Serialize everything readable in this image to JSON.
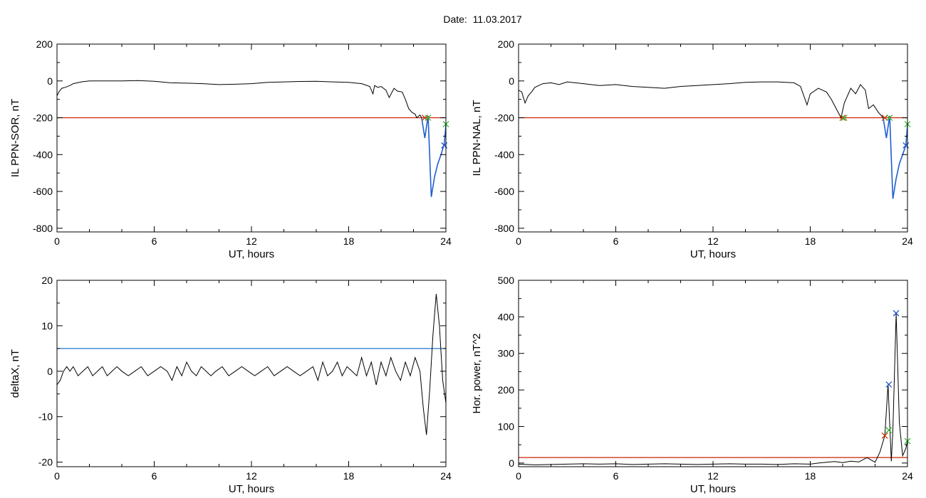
{
  "header": {
    "date_label": "Date:",
    "date_value": "11.03.2017"
  },
  "colors": {
    "threshold_red": "#cc2200",
    "threshold_blue": "#2277cc",
    "event_blue": "#1f5fd0",
    "marker_red": "#cc3300",
    "marker_green": "#33bb33",
    "marker_blue": "#2255cc"
  },
  "chart_data": [
    {
      "id": "ppn-sor",
      "type": "line",
      "xlabel": "UT, hours",
      "ylabel": "IL PPN-SOR, nT",
      "xlim": [
        0,
        24
      ],
      "ylim": [
        -820,
        200
      ],
      "xticks": [
        "0",
        "6",
        "12",
        "18",
        "24"
      ],
      "yticks": [
        "200",
        "0",
        "-200",
        "-400",
        "-600",
        "-800"
      ],
      "threshold": {
        "value": -200,
        "color": "#cc2200"
      },
      "series": [
        {
          "x": [
            0,
            0.15,
            0.3,
            0.5,
            0.8,
            1.0,
            1.5,
            2.0,
            3.0,
            4.0,
            5.0,
            6.0,
            7.0,
            8.0,
            9.0,
            10.0,
            11.0,
            12.0,
            13.0,
            14.0,
            15.0,
            16.0,
            17.0,
            18.0,
            18.8,
            19.3,
            19.5,
            19.6,
            19.8,
            20.0,
            20.3,
            20.5,
            20.8,
            21.0,
            21.3,
            21.5,
            21.7,
            21.9,
            22.1,
            22.2,
            22.4,
            22.5
          ],
          "y": [
            -80,
            -55,
            -40,
            -35,
            -25,
            -15,
            -5,
            0,
            0,
            0,
            2,
            -2,
            -10,
            -12,
            -15,
            -20,
            -18,
            -15,
            -8,
            -5,
            -3,
            -2,
            -5,
            -8,
            -15,
            -30,
            -70,
            -25,
            -35,
            -30,
            -50,
            -90,
            -40,
            -55,
            -60,
            -100,
            -150,
            -170,
            -180,
            -200,
            -185,
            -200
          ]
        },
        {
          "x": [
            22.5,
            22.7,
            22.9,
            23.1,
            23.3,
            23.5,
            23.7,
            23.9,
            24.0
          ],
          "y": [
            -200,
            -310,
            -190,
            -630,
            -520,
            -450,
            -400,
            -340,
            -240
          ],
          "color": "#1f5fd0"
        }
      ],
      "markers": [
        {
          "x": 22.7,
          "y": -200,
          "color": "#cc3300"
        },
        {
          "x": 22.9,
          "y": -200,
          "color": "#33bb33"
        },
        {
          "x": 23.9,
          "y": -350,
          "color": "#2255cc"
        },
        {
          "x": 24.0,
          "y": -235,
          "color": "#33bb33"
        }
      ]
    },
    {
      "id": "ppn-nal",
      "type": "line",
      "xlabel": "UT, hours",
      "ylabel": "IL PPN-NAL, nT",
      "xlim": [
        0,
        24
      ],
      "ylim": [
        -820,
        200
      ],
      "xticks": [
        "0",
        "6",
        "12",
        "18",
        "24"
      ],
      "yticks": [
        "200",
        "0",
        "-200",
        "-400",
        "-600",
        "-800"
      ],
      "threshold": {
        "value": -200,
        "color": "#cc2200"
      },
      "series": [
        {
          "x": [
            0,
            0.2,
            0.4,
            0.6,
            0.8,
            1.0,
            1.5,
            2.0,
            2.5,
            3.0,
            4.0,
            5.0,
            6.0,
            7.0,
            8.0,
            9.0,
            10.0,
            11.0,
            12.0,
            13.0,
            14.0,
            15.0,
            16.0,
            17.0,
            17.4,
            17.8,
            18.0,
            18.5,
            19.0,
            19.3,
            19.6,
            19.9,
            20.1,
            20.5,
            20.8,
            21.1,
            21.4,
            21.6,
            21.9,
            22.2,
            22.5
          ],
          "y": [
            -50,
            -60,
            -120,
            -80,
            -60,
            -35,
            -15,
            -10,
            -20,
            -5,
            -15,
            -25,
            -20,
            -30,
            -35,
            -40,
            -30,
            -25,
            -20,
            -15,
            -8,
            -5,
            -5,
            -10,
            -30,
            -130,
            -70,
            -40,
            -60,
            -100,
            -150,
            -200,
            -120,
            -40,
            -70,
            -20,
            -50,
            -150,
            -130,
            -170,
            -200
          ]
        },
        {
          "x": [
            22.5,
            22.7,
            22.9,
            23.1,
            23.3,
            23.5,
            23.7,
            23.9,
            24.0
          ],
          "y": [
            -200,
            -310,
            -190,
            -640,
            -530,
            -450,
            -400,
            -350,
            -240
          ],
          "color": "#1f5fd0"
        }
      ],
      "markers": [
        {
          "x": 20.0,
          "y": -200,
          "color": "#cc3300"
        },
        {
          "x": 20.1,
          "y": -200,
          "color": "#33bb33"
        },
        {
          "x": 22.6,
          "y": -200,
          "color": "#cc3300"
        },
        {
          "x": 22.9,
          "y": -200,
          "color": "#33bb33"
        },
        {
          "x": 23.9,
          "y": -350,
          "color": "#2255cc"
        },
        {
          "x": 24.0,
          "y": -235,
          "color": "#33bb33"
        }
      ]
    },
    {
      "id": "deltax",
      "type": "line",
      "xlabel": "UT, hours",
      "ylabel": "deltaX, nT",
      "xlim": [
        0,
        24
      ],
      "ylim": [
        -21,
        20
      ],
      "xticks": [
        "0",
        "6",
        "12",
        "18",
        "24"
      ],
      "yticks": [
        "20",
        "10",
        "0",
        "-10",
        "-20"
      ],
      "threshold": {
        "value": 5,
        "color": "#2277cc"
      },
      "series": [
        {
          "x": [
            0,
            0.2,
            0.4,
            0.6,
            0.8,
            1.0,
            1.3,
            1.6,
            1.9,
            2.2,
            2.5,
            2.8,
            3.1,
            3.4,
            3.7,
            4.0,
            4.4,
            4.8,
            5.2,
            5.6,
            6.0,
            6.4,
            6.8,
            7.1,
            7.4,
            7.7,
            8.0,
            8.3,
            8.6,
            8.9,
            9.2,
            9.5,
            9.8,
            10.2,
            10.6,
            11.0,
            11.4,
            11.8,
            12.2,
            12.6,
            13.0,
            13.4,
            13.8,
            14.2,
            14.6,
            15.0,
            15.4,
            15.8,
            16.1,
            16.4,
            16.7,
            17.0,
            17.3,
            17.6,
            17.9,
            18.2,
            18.5,
            18.8,
            19.1,
            19.4,
            19.7,
            20.0,
            20.3,
            20.6,
            20.9,
            21.2,
            21.5,
            21.8,
            22.1,
            22.4,
            22.6,
            22.8,
            23.0,
            23.2,
            23.4,
            23.6,
            23.8,
            24.0
          ],
          "y": [
            -3,
            -2,
            0,
            1,
            0,
            1,
            -1,
            0,
            1,
            -1,
            0,
            1,
            -1,
            0,
            1,
            0,
            -1,
            0,
            1,
            -1,
            0,
            1,
            0,
            -2,
            1,
            -1,
            2,
            0,
            -1,
            1,
            0,
            -1,
            0,
            1,
            -1,
            0,
            1,
            0,
            -1,
            0,
            1,
            -1,
            0,
            1,
            0,
            -1,
            0,
            1,
            -2,
            2,
            -1,
            0,
            2,
            -1,
            1,
            0,
            -1,
            3,
            -1,
            2,
            -3,
            2,
            -1,
            3,
            0,
            -2,
            2,
            -1,
            3,
            0,
            -8,
            -14,
            -4,
            8,
            17,
            10,
            -2,
            -7
          ]
        }
      ]
    },
    {
      "id": "hor-power",
      "type": "line",
      "xlabel": "UT, hours",
      "ylabel": "Hor. power, nT^2",
      "xlim": [
        0,
        24
      ],
      "ylim": [
        -10,
        500
      ],
      "xticks": [
        "0",
        "6",
        "12",
        "18",
        "24"
      ],
      "yticks": [
        "500",
        "400",
        "300",
        "200",
        "100",
        "0"
      ],
      "threshold": {
        "value": 15,
        "color": "#cc2200"
      },
      "series": [
        {
          "x": [
            0,
            1,
            2,
            3,
            4,
            5,
            6,
            7,
            8,
            9,
            10,
            11,
            12,
            13,
            14,
            15,
            16,
            17,
            18,
            18.5,
            19,
            19.5,
            20,
            20.5,
            21,
            21.5,
            22,
            22.3,
            22.6,
            22.8,
            23.0,
            23.1,
            23.3,
            23.5,
            23.7,
            23.9,
            24.0
          ],
          "y": [
            -3,
            -5,
            -4,
            -3,
            -2,
            -3,
            -2,
            -4,
            -3,
            -2,
            -3,
            -4,
            -3,
            -2,
            -3,
            -3,
            -4,
            -2,
            -3,
            0,
            2,
            4,
            1,
            5,
            3,
            15,
            2,
            30,
            75,
            215,
            5,
            90,
            410,
            110,
            20,
            40,
            60
          ]
        }
      ],
      "markers": [
        {
          "x": 22.6,
          "y": 75,
          "color": "#cc3300"
        },
        {
          "x": 22.85,
          "y": 90,
          "color": "#33bb33"
        },
        {
          "x": 22.85,
          "y": 215,
          "color": "#2255cc"
        },
        {
          "x": 23.3,
          "y": 410,
          "color": "#2255cc"
        },
        {
          "x": 24.0,
          "y": 60,
          "color": "#33bb33"
        }
      ]
    }
  ]
}
